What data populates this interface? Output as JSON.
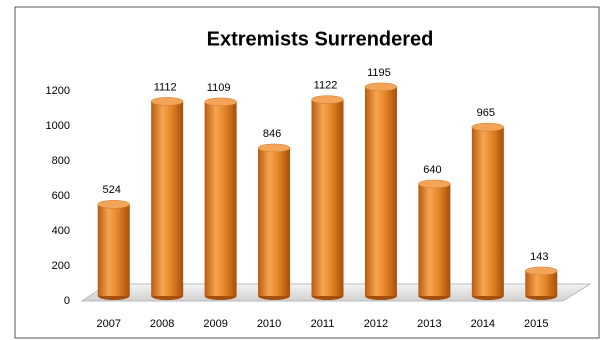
{
  "chart_data": {
    "type": "bar",
    "title": "Extremists  Surrendered",
    "categories": [
      "2007",
      "2008",
      "2009",
      "2010",
      "2011",
      "2012",
      "2013",
      "2014",
      "2015"
    ],
    "values": [
      524,
      1112,
      1109,
      846,
      1122,
      1195,
      640,
      965,
      143
    ],
    "color": "#e8892a",
    "ylim": [
      0,
      1200
    ],
    "yticks": [
      0,
      200,
      400,
      600,
      800,
      1000,
      1200
    ],
    "grid": false
  }
}
